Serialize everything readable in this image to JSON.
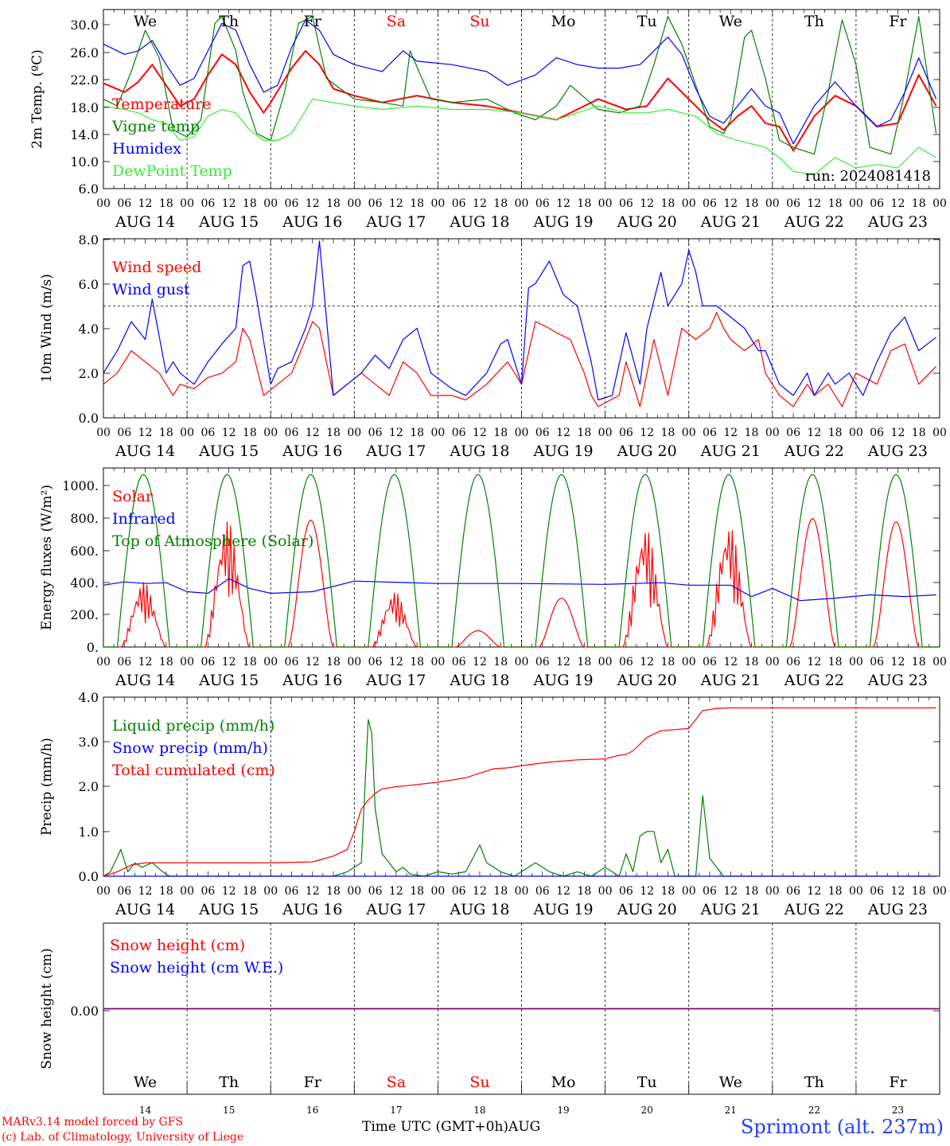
{
  "weekdays": [
    {
      "label": "We",
      "color": "#000000"
    },
    {
      "label": "Th",
      "color": "#000000"
    },
    {
      "label": "Fr",
      "color": "#000000"
    },
    {
      "label": "Sa",
      "color": "#ff0000"
    },
    {
      "label": "Su",
      "color": "#ff0000"
    },
    {
      "label": "Mo",
      "color": "#000000"
    },
    {
      "label": "Tu",
      "color": "#000000"
    },
    {
      "label": "We",
      "color": "#000000"
    },
    {
      "label": "Th",
      "color": "#000000"
    },
    {
      "label": "Fr",
      "color": "#000000"
    }
  ],
  "date_labels": [
    "AUG 14",
    "AUG 15",
    "AUG 16",
    "AUG 17",
    "AUG 18",
    "AUG 19",
    "AUG 20",
    "AUG 21",
    "AUG 22",
    "AUG 23"
  ],
  "day_numbers": [
    "14",
    "15",
    "16",
    "17",
    "18",
    "19",
    "20",
    "21",
    "22",
    "23"
  ],
  "hour_ticks": [
    "00",
    "06",
    "12",
    "18"
  ],
  "hour_end": "00",
  "footer": {
    "credit_line1": "MARv3.14 model forced by GFS",
    "credit_line2": "(c) Lab. of Climatology, University of Liege",
    "xaxis_caption": "Time UTC (GMT+0h)AUG",
    "station": "Sprimont (alt. 237m)"
  },
  "chart_data": [
    {
      "type": "line",
      "ylabel": "2m Temp. (ºC)",
      "ylim": [
        6.0,
        32.0
      ],
      "yticks": [
        "6.0",
        "10.0",
        "14.0",
        "18.0",
        "22.0",
        "26.0",
        "30.0"
      ],
      "annotation": "run: 2024081418",
      "x_unit": "hours since AUG 14 00 UTC",
      "series": [
        {
          "name": "Temperature",
          "color": "#ff0000",
          "x": [
            0,
            6,
            10,
            14,
            18,
            22,
            26,
            30,
            34,
            38,
            42,
            46,
            48,
            54,
            58,
            62,
            66,
            72,
            80,
            90,
            100,
            110,
            120,
            130,
            136,
            142,
            150,
            156,
            162,
            168,
            174,
            178,
            182,
            186,
            190,
            194,
            198,
            204,
            210,
            216,
            222,
            228,
            234,
            239
          ],
          "y": [
            21.3,
            20.0,
            21.5,
            24.0,
            21.0,
            18.0,
            19.0,
            22.5,
            25.5,
            24.0,
            20.0,
            17.0,
            18.5,
            23.5,
            26.0,
            24.0,
            20.5,
            19.5,
            18.5,
            19.5,
            18.5,
            18.0,
            17.0,
            16.0,
            17.5,
            19.0,
            17.5,
            18.0,
            22.0,
            19.0,
            16.0,
            14.5,
            16.5,
            18.0,
            15.5,
            15.0,
            11.5,
            16.5,
            19.5,
            18.0,
            15.0,
            15.5,
            22.5,
            18.0
          ]
        },
        {
          "name": "Vigne temp",
          "color": "#008000",
          "x": [
            0,
            4,
            8,
            12,
            16,
            20,
            24,
            28,
            32,
            34,
            38,
            40,
            44,
            48,
            52,
            56,
            60,
            64,
            68,
            72,
            80,
            86,
            88,
            94,
            100,
            110,
            118,
            124,
            130,
            134,
            142,
            148,
            154,
            158,
            162,
            166,
            170,
            174,
            178,
            180,
            184,
            186,
            190,
            194,
            198,
            204,
            208,
            212,
            216,
            220,
            226,
            230,
            234,
            239
          ],
          "y": [
            19.0,
            18.0,
            23.0,
            29.0,
            25.0,
            14.5,
            13.5,
            16.0,
            30.0,
            31.0,
            26.0,
            20.0,
            14.0,
            13.0,
            20.0,
            30.0,
            31.0,
            22.0,
            20.5,
            19.0,
            18.5,
            18.0,
            26.0,
            19.0,
            18.5,
            19.0,
            17.0,
            16.0,
            18.0,
            21.0,
            17.5,
            17.0,
            18.0,
            24.0,
            31.0,
            27.0,
            21.0,
            15.0,
            14.0,
            16.0,
            28.0,
            29.0,
            22.0,
            13.0,
            12.0,
            11.0,
            20.0,
            30.5,
            24.0,
            12.0,
            11.0,
            20.0,
            31.0,
            14.0
          ]
        },
        {
          "name": "Humidex",
          "color": "#0000ff",
          "x": [
            0,
            6,
            10,
            14,
            18,
            22,
            26,
            30,
            34,
            38,
            42,
            46,
            50,
            54,
            58,
            62,
            66,
            72,
            80,
            86,
            90,
            100,
            110,
            116,
            124,
            130,
            136,
            142,
            148,
            154,
            158,
            162,
            166,
            170,
            174,
            178,
            182,
            186,
            190,
            194,
            198,
            204,
            210,
            216,
            222,
            226,
            230,
            234,
            239
          ],
          "y": [
            27.0,
            25.5,
            26.0,
            27.5,
            24.0,
            21.0,
            22.0,
            26.0,
            30.0,
            29.0,
            24.0,
            20.0,
            21.0,
            26.5,
            30.5,
            29.0,
            25.5,
            24.0,
            23.0,
            26.0,
            24.5,
            24.0,
            23.0,
            21.0,
            22.5,
            25.0,
            24.0,
            23.5,
            23.5,
            24.0,
            26.0,
            28.0,
            25.5,
            20.5,
            16.5,
            15.5,
            18.0,
            20.5,
            18.0,
            17.0,
            12.5,
            18.0,
            21.5,
            18.0,
            15.0,
            16.0,
            20.0,
            25.0,
            19.0
          ]
        },
        {
          "name": "DewPoint Temp",
          "color": "#33ee33",
          "x": [
            0,
            6,
            10,
            14,
            18,
            22,
            26,
            30,
            34,
            38,
            42,
            46,
            50,
            54,
            60,
            66,
            72,
            80,
            90,
            100,
            110,
            120,
            130,
            136,
            142,
            150,
            156,
            162,
            170,
            176,
            182,
            186,
            190,
            194,
            198,
            204,
            210,
            216,
            222,
            228,
            234,
            239
          ],
          "y": [
            18.0,
            17.5,
            17.0,
            16.0,
            15.5,
            13.0,
            13.5,
            16.5,
            17.5,
            17.0,
            14.5,
            13.0,
            13.0,
            14.0,
            19.0,
            18.5,
            18.0,
            17.5,
            18.0,
            17.5,
            17.5,
            17.0,
            16.0,
            17.0,
            18.0,
            17.0,
            17.0,
            17.5,
            16.5,
            14.0,
            13.0,
            12.5,
            12.0,
            10.5,
            8.5,
            8.0,
            10.5,
            9.0,
            9.5,
            9.0,
            12.0,
            10.5
          ]
        }
      ]
    },
    {
      "type": "line",
      "ylabel": "10m Wind (m/s)",
      "ylim": [
        0.0,
        8.0
      ],
      "yticks": [
        "0.0",
        "2.0",
        "4.0",
        "6.0",
        "8.0"
      ],
      "reference_line": 5.0,
      "series": [
        {
          "name": "Wind speed",
          "color": "#ff0000",
          "x": [
            0,
            4,
            8,
            12,
            16,
            20,
            22,
            26,
            30,
            34,
            38,
            40,
            42,
            46,
            50,
            54,
            58,
            60,
            62,
            66,
            70,
            74,
            78,
            82,
            86,
            90,
            94,
            100,
            104,
            110,
            116,
            120,
            124,
            128,
            130,
            134,
            138,
            140,
            142,
            148,
            150,
            154,
            158,
            162,
            166,
            170,
            174,
            176,
            178,
            180,
            184,
            188,
            190,
            194,
            198,
            202,
            204,
            208,
            212,
            216,
            222,
            226,
            230,
            234,
            239
          ],
          "y": [
            1.5,
            2.0,
            3.0,
            2.5,
            2.0,
            1.0,
            1.5,
            1.3,
            1.8,
            2.0,
            2.5,
            4.0,
            3.5,
            1.0,
            1.5,
            2.0,
            3.5,
            4.3,
            4.0,
            1.0,
            1.5,
            2.0,
            1.5,
            1.0,
            2.5,
            2.0,
            1.0,
            1.0,
            0.8,
            1.5,
            2.5,
            1.5,
            4.3,
            4.0,
            3.8,
            3.5,
            2.0,
            1.0,
            0.5,
            1.0,
            2.5,
            0.5,
            3.5,
            1.0,
            4.0,
            3.5,
            4.0,
            4.7,
            4.0,
            3.5,
            3.0,
            3.5,
            2.0,
            1.0,
            0.5,
            1.5,
            1.0,
            1.5,
            0.5,
            2.0,
            1.5,
            3.0,
            3.3,
            1.5,
            2.3
          ]
        },
        {
          "name": "Wind gust",
          "color": "#0000ff",
          "x": [
            0,
            4,
            8,
            12,
            14,
            18,
            20,
            22,
            26,
            30,
            34,
            38,
            40,
            42,
            44,
            48,
            50,
            54,
            58,
            60,
            62,
            66,
            70,
            74,
            78,
            82,
            86,
            90,
            94,
            100,
            104,
            110,
            114,
            116,
            120,
            122,
            124,
            128,
            132,
            136,
            140,
            142,
            146,
            150,
            154,
            156,
            160,
            162,
            166,
            168,
            170,
            172,
            176,
            180,
            184,
            188,
            190,
            194,
            198,
            202,
            204,
            208,
            210,
            214,
            218,
            222,
            226,
            230,
            234,
            239
          ],
          "y": [
            2.0,
            3.0,
            4.3,
            3.5,
            5.3,
            2.0,
            2.5,
            2.0,
            1.5,
            2.5,
            3.3,
            4.0,
            6.8,
            7.0,
            5.3,
            1.5,
            2.2,
            2.5,
            4.0,
            5.0,
            7.9,
            1.0,
            1.5,
            2.0,
            2.8,
            2.2,
            3.5,
            4.0,
            2.0,
            1.3,
            1.0,
            2.0,
            3.3,
            3.5,
            1.5,
            5.8,
            6.0,
            7.0,
            5.5,
            5.0,
            2.5,
            0.8,
            1.0,
            3.8,
            1.5,
            4.0,
            6.5,
            5.0,
            6.0,
            7.5,
            6.5,
            5.0,
            5.0,
            4.5,
            4.0,
            3.0,
            3.0,
            1.5,
            1.0,
            2.0,
            1.0,
            2.0,
            1.5,
            2.0,
            1.0,
            2.5,
            3.8,
            4.5,
            3.0,
            3.6
          ]
        }
      ]
    },
    {
      "type": "line",
      "ylabel": "Energy fluxes (W/m²)",
      "ylim": [
        0,
        1100
      ],
      "yticks": [
        "0.",
        "200.",
        "400.",
        "600.",
        "800.",
        "1000."
      ],
      "series": [
        {
          "name": "Solar",
          "color": "#ff0000",
          "peaks": [
            400,
            780,
            780,
            340,
            100,
            300,
            740,
            760,
            790,
            770
          ],
          "jagged": [
            true,
            true,
            false,
            true,
            false,
            false,
            true,
            true,
            false,
            false
          ]
        },
        {
          "name": "Infrared",
          "color": "#0000ff",
          "x": [
            0,
            6,
            12,
            18,
            24,
            30,
            36,
            42,
            48,
            60,
            72,
            96,
            120,
            144,
            160,
            168,
            180,
            186,
            192,
            200,
            210,
            220,
            230,
            239
          ],
          "y": [
            380,
            400,
            390,
            395,
            340,
            330,
            420,
            360,
            330,
            340,
            405,
            390,
            390,
            385,
            395,
            380,
            380,
            310,
            360,
            285,
            300,
            320,
            310,
            320
          ]
        },
        {
          "name": "Top of Atmosphere (Solar)",
          "color": "#008000",
          "peak": 1060,
          "day_start": 4,
          "day_end": 19
        }
      ]
    },
    {
      "type": "line",
      "ylabel": "Precip (mm/h)",
      "ylim": [
        0.0,
        4.0
      ],
      "yticks": [
        "0.0",
        "1.0",
        "2.0",
        "3.0",
        "4.0"
      ],
      "series": [
        {
          "name": "Liquid precip (mm/h)",
          "color": "#008000",
          "x": [
            0,
            2,
            5,
            7,
            9,
            11,
            14,
            17,
            19,
            66,
            70,
            72,
            74,
            76,
            77,
            78,
            80,
            82,
            84,
            86,
            88,
            92,
            96,
            100,
            104,
            108,
            110,
            112,
            114,
            118,
            124,
            128,
            132,
            136,
            140,
            144,
            148,
            150,
            152,
            154,
            156,
            158,
            160,
            162,
            164,
            166,
            168,
            170,
            172,
            174,
            176,
            178,
            239
          ],
          "y": [
            0,
            0.1,
            0.6,
            0.1,
            0.3,
            0.2,
            0.3,
            0.1,
            0,
            0,
            0.1,
            0.2,
            0.3,
            3.5,
            3.2,
            1.5,
            0.5,
            0.3,
            0.1,
            0.2,
            0.05,
            0,
            0.1,
            0.05,
            0.1,
            0.7,
            0.3,
            0.2,
            0.1,
            0,
            0.3,
            0.1,
            0,
            0.1,
            0,
            0.2,
            0,
            0.5,
            0.1,
            0.9,
            1.0,
            1.0,
            0.3,
            0.6,
            0,
            0,
            0,
            0,
            1.8,
            0.4,
            0.2,
            0,
            0
          ]
        },
        {
          "name": "Snow precip (mm/h)",
          "color": "#0000ff",
          "x": [
            0,
            239
          ],
          "y": [
            0,
            0
          ]
        },
        {
          "name": "Total cumulated (cm)",
          "color": "#ff0000",
          "x": [
            0,
            4,
            8,
            12,
            48,
            60,
            66,
            70,
            72,
            74,
            76,
            78,
            80,
            84,
            88,
            96,
            104,
            108,
            112,
            116,
            120,
            128,
            136,
            144,
            148,
            150,
            152,
            156,
            160,
            168,
            170,
            172,
            176,
            180,
            190,
            200,
            239
          ],
          "y": [
            0,
            0.1,
            0.25,
            0.3,
            0.3,
            0.32,
            0.45,
            0.6,
            1.0,
            1.5,
            1.7,
            1.85,
            1.95,
            2.0,
            2.03,
            2.1,
            2.2,
            2.3,
            2.4,
            2.42,
            2.47,
            2.55,
            2.6,
            2.62,
            2.7,
            2.72,
            2.8,
            3.1,
            3.25,
            3.3,
            3.5,
            3.7,
            3.75,
            3.76,
            3.76,
            3.76,
            3.76
          ]
        }
      ]
    },
    {
      "type": "line",
      "ylabel": "Snow height (cm)",
      "ylim": [
        -1.0,
        1.0
      ],
      "yticks": [
        "0.00"
      ],
      "series": [
        {
          "name": "Snow height (cm)",
          "color": "#ff0000",
          "x": [
            0,
            239
          ],
          "y": [
            0,
            0
          ]
        },
        {
          "name": "Snow height (cm W.E.)",
          "color": "#0000ff",
          "x": [
            0,
            239
          ],
          "y": [
            0,
            0
          ]
        }
      ]
    }
  ]
}
